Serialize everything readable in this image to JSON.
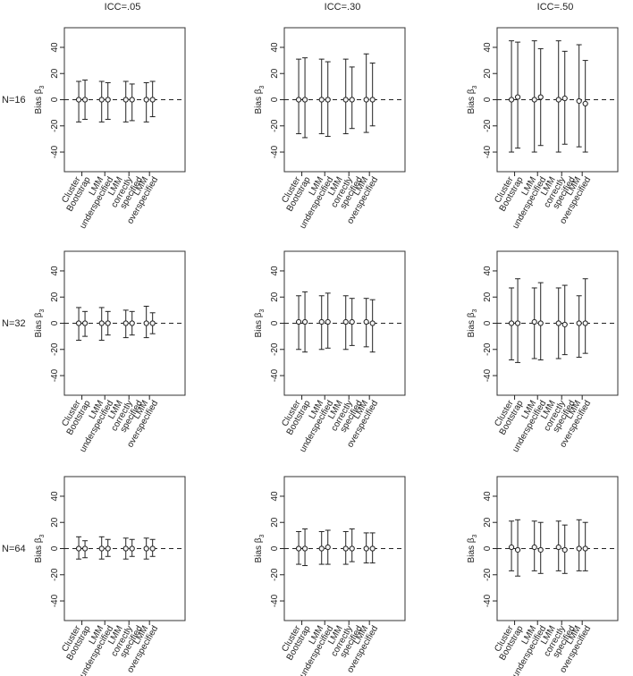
{
  "figure": {
    "column_titles": [
      "ICC=.05",
      "ICC=.30",
      "ICC=.50"
    ],
    "row_labels": [
      "N=16",
      "N=32",
      "N=64"
    ],
    "ylabel_main": "Bias",
    "ylabel_symbol": "β",
    "ylabel_sub": "3"
  },
  "colors": {
    "ink": "#222222",
    "frame": "#333333",
    "background": "#ffffff"
  },
  "chart_data": [
    {
      "type": "scatter",
      "panel": "N=16, ICC=.05",
      "title": "ICC=.05",
      "row_label": "N=16",
      "ylabel": "Bias β3",
      "ylim": [
        -55,
        55
      ],
      "yticks": [
        -40,
        -20,
        0,
        20,
        40
      ],
      "reference_line": 0,
      "grid": false,
      "x_tick_labels": [
        [
          "Cluster",
          "Bootstrap"
        ],
        [
          "LMM",
          "underspecified"
        ],
        [
          "LMM",
          "correctly",
          "specified"
        ],
        [
          "LMM",
          "overspecified"
        ]
      ],
      "series": [
        {
          "estimate": [
            0,
            0,
            0,
            0
          ],
          "lower": [
            -17,
            -17,
            -17,
            -17
          ],
          "upper": [
            14,
            14,
            14,
            13
          ]
        },
        {
          "estimate": [
            0,
            0,
            0,
            0
          ],
          "lower": [
            -15,
            -15,
            -16,
            -13
          ],
          "upper": [
            15,
            13,
            12,
            14
          ]
        }
      ]
    },
    {
      "type": "scatter",
      "panel": "N=16, ICC=.30",
      "title": "ICC=.30",
      "row_label": "N=16",
      "ylabel": "Bias β3",
      "ylim": [
        -55,
        55
      ],
      "yticks": [
        -40,
        -20,
        0,
        20,
        40
      ],
      "reference_line": 0,
      "grid": false,
      "x_tick_labels": [
        [
          "Cluster",
          "Bootstrap"
        ],
        [
          "LMM",
          "underspecified"
        ],
        [
          "LMM",
          "correctly",
          "specified"
        ],
        [
          "LMM",
          "overspecified"
        ]
      ],
      "series": [
        {
          "estimate": [
            0,
            0,
            0,
            0
          ],
          "lower": [
            -26,
            -26,
            -26,
            -25
          ],
          "upper": [
            31,
            31,
            31,
            35
          ]
        },
        {
          "estimate": [
            0,
            0,
            0,
            0
          ],
          "lower": [
            -29,
            -28,
            -22,
            -20
          ],
          "upper": [
            32,
            29,
            25,
            28
          ]
        }
      ]
    },
    {
      "type": "scatter",
      "panel": "N=16, ICC=.50",
      "title": "ICC=.50",
      "row_label": "N=16",
      "ylabel": "Bias β3",
      "ylim": [
        -55,
        55
      ],
      "yticks": [
        -40,
        -20,
        0,
        20,
        40
      ],
      "reference_line": 0,
      "grid": false,
      "x_tick_labels": [
        [
          "Cluster",
          "Bootstrap"
        ],
        [
          "LMM",
          "underspecified"
        ],
        [
          "LMM",
          "correctly",
          "specified"
        ],
        [
          "LMM",
          "overspecified"
        ]
      ],
      "series": [
        {
          "estimate": [
            0,
            0,
            0,
            -1
          ],
          "lower": [
            -40,
            -40,
            -40,
            -36
          ],
          "upper": [
            45,
            45,
            45,
            42
          ]
        },
        {
          "estimate": [
            2,
            2,
            1,
            -3
          ],
          "lower": [
            -37,
            -35,
            -34,
            -40
          ],
          "upper": [
            44,
            39,
            37,
            30
          ]
        }
      ]
    },
    {
      "type": "scatter",
      "panel": "N=32, ICC=.05",
      "title": "",
      "row_label": "N=32",
      "ylabel": "Bias β3",
      "ylim": [
        -55,
        55
      ],
      "yticks": [
        -40,
        -20,
        0,
        20,
        40
      ],
      "reference_line": 0,
      "grid": false,
      "x_tick_labels": [
        [
          "Cluster",
          "Bootstrap"
        ],
        [
          "LMM",
          "underspecified"
        ],
        [
          "LMM",
          "correctly",
          "specified"
        ],
        [
          "LMM",
          "overspecified"
        ]
      ],
      "series": [
        {
          "estimate": [
            0,
            0,
            0,
            0
          ],
          "lower": [
            -13,
            -13,
            -11,
            -11
          ],
          "upper": [
            12,
            12,
            10,
            13
          ]
        },
        {
          "estimate": [
            0,
            0,
            0,
            0
          ],
          "lower": [
            -10,
            -9,
            -9,
            -8
          ],
          "upper": [
            9,
            9,
            9,
            8
          ]
        }
      ]
    },
    {
      "type": "scatter",
      "panel": "N=32, ICC=.30",
      "title": "",
      "row_label": "N=32",
      "ylabel": "Bias β3",
      "ylim": [
        -55,
        55
      ],
      "yticks": [
        -40,
        -20,
        0,
        20,
        40
      ],
      "reference_line": 0,
      "grid": false,
      "x_tick_labels": [
        [
          "Cluster",
          "Bootstrap"
        ],
        [
          "LMM",
          "underspecified"
        ],
        [
          "LMM",
          "correctly",
          "specified"
        ],
        [
          "LMM",
          "overspecified"
        ]
      ],
      "series": [
        {
          "estimate": [
            1,
            1,
            1,
            1
          ],
          "lower": [
            -20,
            -20,
            -20,
            -18
          ],
          "upper": [
            21,
            21,
            21,
            19
          ]
        },
        {
          "estimate": [
            1,
            1,
            1,
            0
          ],
          "lower": [
            -22,
            -19,
            -17,
            -22
          ],
          "upper": [
            24,
            23,
            19,
            18
          ]
        }
      ]
    },
    {
      "type": "scatter",
      "panel": "N=32, ICC=.50",
      "title": "",
      "row_label": "N=32",
      "ylabel": "Bias β3",
      "ylim": [
        -55,
        55
      ],
      "yticks": [
        -40,
        -20,
        0,
        20,
        40
      ],
      "reference_line": 0,
      "grid": false,
      "x_tick_labels": [
        [
          "Cluster",
          "Bootstrap"
        ],
        [
          "LMM",
          "underspecified"
        ],
        [
          "LMM",
          "correctly",
          "specified"
        ],
        [
          "LMM",
          "overspecified"
        ]
      ],
      "series": [
        {
          "estimate": [
            0,
            1,
            0,
            0
          ],
          "lower": [
            -28,
            -27,
            -27,
            -26
          ],
          "upper": [
            27,
            27,
            27,
            21
          ]
        },
        {
          "estimate": [
            0,
            0,
            -1,
            0
          ],
          "lower": [
            -30,
            -28,
            -24,
            -23
          ],
          "upper": [
            34,
            31,
            29,
            34
          ]
        }
      ]
    },
    {
      "type": "scatter",
      "panel": "N=64, ICC=.05",
      "title": "",
      "row_label": "N=64",
      "ylabel": "Bias β3",
      "ylim": [
        -55,
        55
      ],
      "yticks": [
        -40,
        -20,
        0,
        20,
        40
      ],
      "reference_line": 0,
      "grid": false,
      "x_tick_labels": [
        [
          "Cluster",
          "Bootstrap"
        ],
        [
          "LMM",
          "underspecified"
        ],
        [
          "LMM",
          "correctly",
          "specified"
        ],
        [
          "LMM",
          "overspecified"
        ]
      ],
      "series": [
        {
          "estimate": [
            0,
            0,
            0,
            0
          ],
          "lower": [
            -8,
            -8,
            -8,
            -8
          ],
          "upper": [
            9,
            9,
            8,
            8
          ]
        },
        {
          "estimate": [
            0,
            0,
            0,
            0
          ],
          "lower": [
            -7,
            -6,
            -6,
            -6
          ],
          "upper": [
            6,
            7,
            7,
            7
          ]
        }
      ]
    },
    {
      "type": "scatter",
      "panel": "N=64, ICC=.30",
      "title": "",
      "row_label": "N=64",
      "ylabel": "Bias β3",
      "ylim": [
        -55,
        55
      ],
      "yticks": [
        -40,
        -20,
        0,
        20,
        40
      ],
      "reference_line": 0,
      "grid": false,
      "x_tick_labels": [
        [
          "Cluster",
          "Bootstrap"
        ],
        [
          "LMM",
          "underspecified"
        ],
        [
          "LMM",
          "correctly",
          "specified"
        ],
        [
          "LMM",
          "overspecified"
        ]
      ],
      "series": [
        {
          "estimate": [
            0,
            0,
            0,
            0
          ],
          "lower": [
            -12,
            -12,
            -12,
            -11
          ],
          "upper": [
            13,
            13,
            13,
            12
          ]
        },
        {
          "estimate": [
            0,
            1,
            0,
            0
          ],
          "lower": [
            -13,
            -12,
            -10,
            -11
          ],
          "upper": [
            15,
            14,
            15,
            12
          ]
        }
      ]
    },
    {
      "type": "scatter",
      "panel": "N=64, ICC=.50",
      "title": "",
      "row_label": "N=64",
      "ylabel": "Bias β3",
      "ylim": [
        -55,
        55
      ],
      "yticks": [
        -40,
        -20,
        0,
        20,
        40
      ],
      "reference_line": 0,
      "grid": false,
      "x_tick_labels": [
        [
          "Cluster",
          "Bootstrap"
        ],
        [
          "LMM",
          "underspecified"
        ],
        [
          "LMM",
          "correctly",
          "specified"
        ],
        [
          "LMM",
          "overspecified"
        ]
      ],
      "series": [
        {
          "estimate": [
            1,
            1,
            1,
            0
          ],
          "lower": [
            -17,
            -17,
            -17,
            -17
          ],
          "upper": [
            21,
            21,
            21,
            22
          ]
        },
        {
          "estimate": [
            -1,
            -1,
            -1,
            0
          ],
          "lower": [
            -21,
            -19,
            -19,
            -17
          ],
          "upper": [
            22,
            20,
            18,
            20
          ]
        }
      ]
    }
  ]
}
